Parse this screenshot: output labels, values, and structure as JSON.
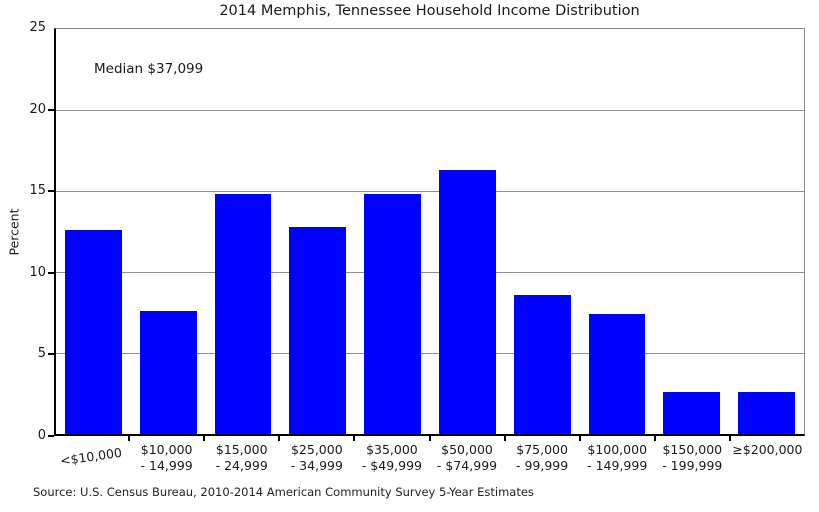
{
  "chart_data": {
    "type": "bar",
    "title": "2014 Memphis, Tennessee Household Income Distribution",
    "ylabel": "Percent",
    "annotation": "Median $37,099",
    "source": "Source: U.S. Census Bureau, 2010-2014 American Community Survey 5-Year Estimates",
    "categories": [
      {
        "line1": "<$10,000",
        "line2": ""
      },
      {
        "line1": "$10,000",
        "line2": "- 14,999"
      },
      {
        "line1": "$15,000",
        "line2": "- 24,999"
      },
      {
        "line1": "$25,000",
        "line2": "- 34,999"
      },
      {
        "line1": "$35,000",
        "line2": "- $49,999"
      },
      {
        "line1": "$50,000",
        "line2": "- $74,999"
      },
      {
        "line1": "$75,000",
        "line2": "- 99,999"
      },
      {
        "line1": "$100,000",
        "line2": "- 149,999"
      },
      {
        "line1": "$150,000",
        "line2": "- 199,999"
      },
      {
        "line1": "≥$200,000",
        "line2": ""
      }
    ],
    "values": [
      12.6,
      7.6,
      14.8,
      12.8,
      14.8,
      16.3,
      8.6,
      7.4,
      2.6,
      2.6
    ],
    "ylim": [
      0,
      25
    ],
    "yticks": [
      0,
      5,
      10,
      15,
      20,
      25
    ],
    "grid": true,
    "legend": null,
    "bar_color": "#0000ff"
  }
}
